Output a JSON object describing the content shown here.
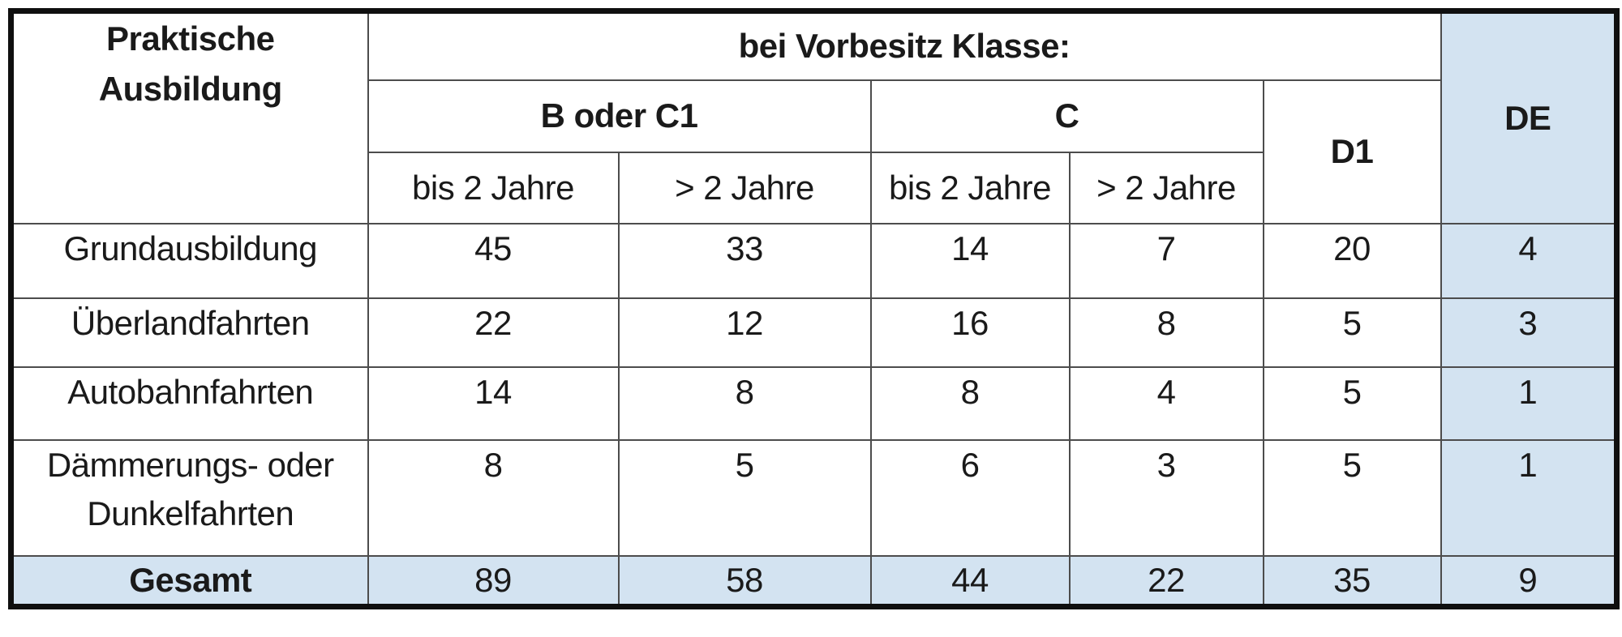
{
  "chart_data": {
    "type": "table",
    "headers": {
      "corner_lines": [
        "Praktische",
        "Ausbildung"
      ],
      "group": "bei Vorbesitz Klasse:",
      "b_group": "B oder C1",
      "c_group": "C",
      "d1": "D1",
      "de": "DE",
      "sub": [
        "bis 2 Jahre",
        "> 2 Jahre",
        "bis 2 Jahre",
        "> 2 Jahre"
      ]
    },
    "rows": [
      {
        "label": "Grundausbildung",
        "values": [
          45,
          33,
          14,
          7,
          20,
          4
        ]
      },
      {
        "label": "Überlandfahrten",
        "values": [
          22,
          12,
          16,
          8,
          5,
          3
        ]
      },
      {
        "label": "Autobahnfahrten",
        "values": [
          14,
          8,
          8,
          4,
          5,
          1
        ]
      },
      {
        "label": "Dämmerungs- oder Dunkelfahrten",
        "values": [
          8,
          5,
          6,
          3,
          5,
          1
        ]
      }
    ],
    "total_row": {
      "label": "Gesamt",
      "values": [
        89,
        58,
        44,
        22,
        35,
        9
      ]
    },
    "layout_hints": {
      "highlighted_column": "DE",
      "highlighted_row": "Gesamt",
      "grid": true
    }
  },
  "colors": {
    "highlight_bg": "#d3e3f1",
    "text": "#1a1a1a",
    "inner_border": "#4c4c4c",
    "outer_border": "#0f0f0f"
  }
}
